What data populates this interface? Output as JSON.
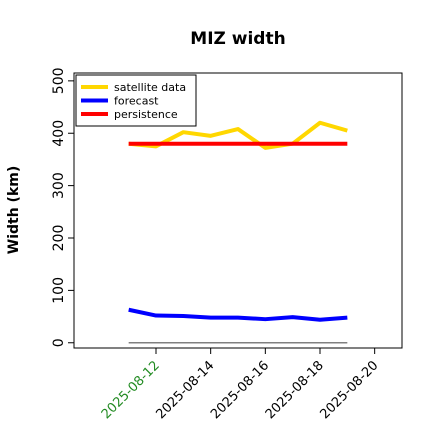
{
  "chart_data": {
    "type": "line",
    "title": "MIZ width",
    "xlabel": "",
    "ylabel": "Width (km)",
    "x": [
      "2025-08-11",
      "2025-08-12",
      "2025-08-13",
      "2025-08-14",
      "2025-08-15",
      "2025-08-16",
      "2025-08-17",
      "2025-08-18",
      "2025-08-19"
    ],
    "xticks": [
      "2025-08-12",
      "2025-08-14",
      "2025-08-16",
      "2025-08-18",
      "2025-08-20"
    ],
    "highlight_tick": "2025-08-12",
    "highlight_color": "#228B22",
    "xlim": [
      "2025-08-09",
      "2025-08-21"
    ],
    "yticks": [
      0,
      100,
      200,
      300,
      400,
      500
    ],
    "ylim": [
      -10,
      515
    ],
    "grid": false,
    "legend_position": "top-left",
    "series": [
      {
        "name": "satellite data",
        "color": "#FFD700",
        "values": [
          380,
          375,
          402,
          395,
          408,
          372,
          380,
          420,
          405
        ]
      },
      {
        "name": "forecast",
        "color": "#0000FF",
        "values": [
          63,
          52,
          51,
          48,
          48,
          45,
          49,
          44,
          48
        ]
      },
      {
        "name": "persistence",
        "color": "#FF0000",
        "values": [
          380,
          380,
          380,
          380,
          380,
          380,
          380,
          380,
          380
        ]
      }
    ],
    "reference_line": {
      "y": 0,
      "color": "#808080"
    }
  }
}
